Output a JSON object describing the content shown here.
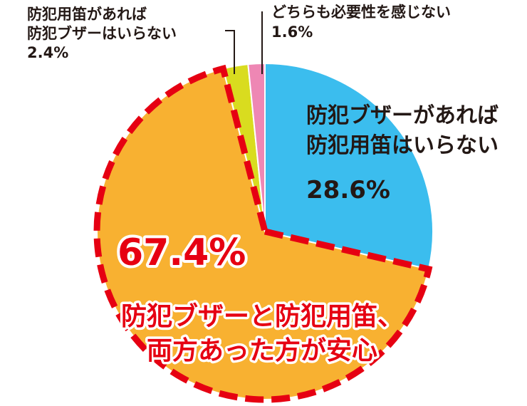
{
  "chart_data": {
    "type": "pie",
    "title": "",
    "slices": [
      {
        "key": "buzzer_only",
        "lines": [
          "防犯ブザーがあれば",
          "防犯用笛はいらない"
        ],
        "value": 28.6,
        "value_label": "28.6%",
        "color": "#3bbdee"
      },
      {
        "key": "both",
        "lines": [
          "防犯ブザーと防犯用笛、",
          "両方あった方が安心"
        ],
        "value": 67.4,
        "value_label": "67.4%",
        "color": "#f8b131"
      },
      {
        "key": "whistle_only",
        "lines": [
          "防犯用笛があれば",
          "防犯ブザーはいらない"
        ],
        "value": 2.4,
        "value_label": "2.4%",
        "color": "#d9dc1f"
      },
      {
        "key": "neither",
        "lines": [
          "どちらも必要性を感じない"
        ],
        "value": 1.6,
        "value_label": "1.6%",
        "color": "#ee87b4"
      }
    ],
    "start_angle_deg": 0,
    "direction": "clockwise",
    "highlight": {
      "slice": "both",
      "border_color": "#e60012",
      "border_style": "dashed"
    }
  }
}
